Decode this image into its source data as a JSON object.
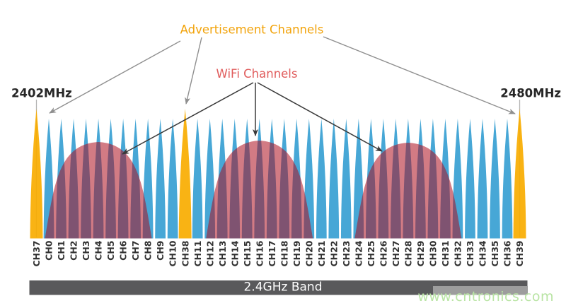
{
  "labels": {
    "advertisement": "Advertisement Channels",
    "wifi": "WiFi Channels",
    "freq_start": "2402MHz",
    "freq_end": "2480MHz",
    "band": "2.4GHz Band",
    "watermark": "www.cntronics.com"
  },
  "colors": {
    "ble_data_channel": "#47a7d6",
    "ble_adv_channel": "#f9ad00",
    "wifi_dome": "rgba(173,14,31,0.55)",
    "band_bar": "#59595b",
    "band_bar_highlight": "#9d9d9d",
    "watermark_text": "#b9e4a4",
    "adv_title_text": "#f2a30a",
    "wifi_title_text": "#e05c5c",
    "freq_text": "#262626",
    "channel_text": "#323232",
    "arrow_gray": "#8f8f8f",
    "arrow_dark": "#3a3a3a",
    "freq_marker_line": "#b3b3b3"
  },
  "channels": [
    {
      "label": "CH37",
      "type": "adv",
      "marker": true
    },
    {
      "label": "CH0",
      "type": "data"
    },
    {
      "label": "CH1",
      "type": "data"
    },
    {
      "label": "CH2",
      "type": "data"
    },
    {
      "label": "CH3",
      "type": "data"
    },
    {
      "label": "CH4",
      "type": "data"
    },
    {
      "label": "CH5",
      "type": "data"
    },
    {
      "label": "CH6",
      "type": "data"
    },
    {
      "label": "CH7",
      "type": "data"
    },
    {
      "label": "CH8",
      "type": "data"
    },
    {
      "label": "CH9",
      "type": "data"
    },
    {
      "label": "CH10",
      "type": "data"
    },
    {
      "label": "CH38",
      "type": "adv"
    },
    {
      "label": "CH11",
      "type": "data"
    },
    {
      "label": "CH12",
      "type": "data"
    },
    {
      "label": "CH13",
      "type": "data"
    },
    {
      "label": "CH14",
      "type": "data"
    },
    {
      "label": "CH15",
      "type": "data"
    },
    {
      "label": "CH16",
      "type": "data"
    },
    {
      "label": "CH17",
      "type": "data"
    },
    {
      "label": "CH18",
      "type": "data"
    },
    {
      "label": "CH19",
      "type": "data"
    },
    {
      "label": "CH20",
      "type": "data"
    },
    {
      "label": "CH21",
      "type": "data"
    },
    {
      "label": "CH22",
      "type": "data"
    },
    {
      "label": "CH23",
      "type": "data"
    },
    {
      "label": "CH24",
      "type": "data"
    },
    {
      "label": "CH25",
      "type": "data"
    },
    {
      "label": "CH26",
      "type": "data"
    },
    {
      "label": "CH27",
      "type": "data"
    },
    {
      "label": "CH28",
      "type": "data"
    },
    {
      "label": "CH29",
      "type": "data"
    },
    {
      "label": "CH30",
      "type": "data"
    },
    {
      "label": "CH31",
      "type": "data"
    },
    {
      "label": "CH32",
      "type": "data"
    },
    {
      "label": "CH33",
      "type": "data"
    },
    {
      "label": "CH34",
      "type": "data"
    },
    {
      "label": "CH35",
      "type": "data"
    },
    {
      "label": "CH36",
      "type": "data"
    },
    {
      "label": "CH39",
      "type": "adv",
      "marker": true
    }
  ],
  "advertisement_channels": [
    "CH37",
    "CH38",
    "CH39"
  ],
  "wifi_domes": [
    {
      "center_channel": "CH4"
    },
    {
      "center_channel": "CH16"
    },
    {
      "center_channel": "CH28"
    }
  ]
}
